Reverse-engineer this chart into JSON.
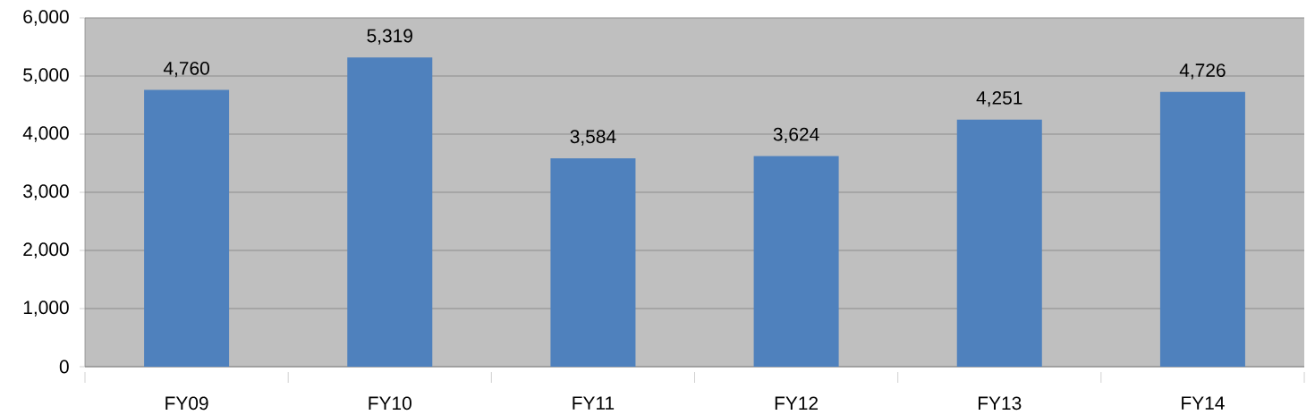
{
  "chart_data": {
    "type": "bar",
    "categories": [
      "FY09",
      "FY10",
      "FY11",
      "FY12",
      "FY13",
      "FY14"
    ],
    "values": [
      4760,
      5319,
      3584,
      3624,
      4251,
      4726
    ],
    "value_labels": [
      "4,760",
      "5,319",
      "3,584",
      "3,624",
      "4,251",
      "4,726"
    ],
    "color": "#4f81bd",
    "ylim": [
      0,
      6000
    ],
    "yticks": [
      0,
      {
        "value": 1000,
        "label": "1,000"
      },
      {
        "value": 2000,
        "label": "2,000"
      },
      {
        "value": 3000,
        "label": "3,000"
      },
      {
        "value": 4000,
        "label": "4,000"
      },
      {
        "value": 5000,
        "label": "5,000"
      },
      {
        "value": 6000,
        "label": "6,000"
      }
    ],
    "grid": "y"
  }
}
